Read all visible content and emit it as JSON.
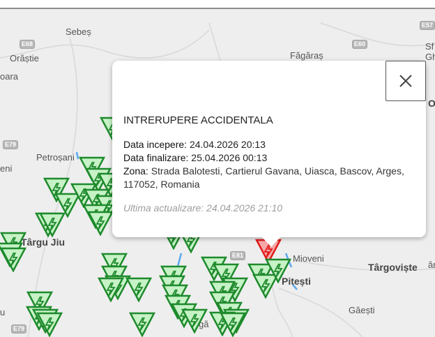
{
  "map": {
    "places": [
      "Sebeș",
      "Orăștie",
      "oara",
      "Petroșani",
      "eni",
      "Târgu Jiu",
      "Făgăraș",
      "Sf",
      "Gh",
      "Mioveni",
      "Târgoviște",
      "Pitești",
      "Găești",
      "u",
      "gă",
      "O",
      "ân"
    ],
    "roads": [
      "E68",
      "E79",
      "E60",
      "E57",
      "E81",
      "E79"
    ],
    "colors": {
      "outage_planned": "#1e8a2c",
      "outage_active": "#e01b1b",
      "background": "#eeeeee"
    }
  },
  "popup": {
    "close_icon": "close-icon",
    "title": "INTRERUPERE ACCIDENTALA",
    "start_label": "Data incepere:",
    "start_value": "24.04.2026 20:13",
    "end_label": "Data finalizare:",
    "end_value": "25.04.2026 00:13",
    "zone_label": "Zona:",
    "zone_value": "Strada Balotesti, Cartierul Gavana, Uiasca, Bascov, Arges, 117052, Romania",
    "updated": "Ultima actualizare: 24.04.2026 21:10"
  }
}
